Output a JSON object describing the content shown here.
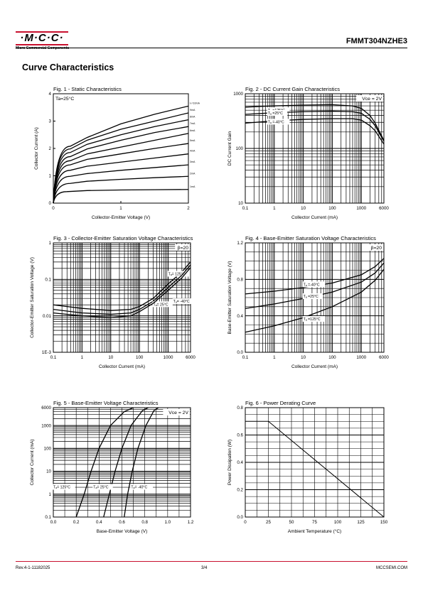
{
  "header": {
    "logo_text": "·M·C·C·",
    "logo_sub": "Micro Commercial Components",
    "part_number": "FMMT304NZHE3"
  },
  "section_title": "Curve Characteristics",
  "footer": {
    "rev": "Rev.4-1-11182025",
    "page": "3/4",
    "site": "MCCSEMI.COM"
  },
  "colors": {
    "accent": "#c8102e",
    "ink": "#000000"
  },
  "chart_data": [
    {
      "id": "fig1",
      "type": "line",
      "title": "Fig. 1 - Static Characteristics",
      "xlabel": "Collector-Emitter Voltage (V)",
      "ylabel": "Collector  Current (A)",
      "annotation": "Ta=25°C",
      "xlim": [
        0,
        2
      ],
      "ylim": [
        0,
        4
      ],
      "xticks": [
        "0",
        "1",
        "2"
      ],
      "yticks": [
        "0",
        "1",
        "2",
        "3",
        "4"
      ],
      "grid": false,
      "series": [
        {
          "name": "Iₙ=10mA",
          "values": [
            [
              0,
              0
            ],
            [
              0.25,
              2.08
            ],
            [
              0.5,
              2.4
            ],
            [
              1,
              2.9
            ],
            [
              1.5,
              3.25
            ],
            [
              2,
              3.55
            ]
          ]
        },
        {
          "name": "9mA",
          "values": [
            [
              0,
              0
            ],
            [
              0.25,
              1.98
            ],
            [
              0.5,
              2.3
            ],
            [
              1,
              2.7
            ],
            [
              1.5,
              3.0
            ],
            [
              2,
              3.3
            ]
          ]
        },
        {
          "name": "8mA",
          "values": [
            [
              0,
              0
            ],
            [
              0.25,
              1.85
            ],
            [
              0.5,
              2.15
            ],
            [
              1,
              2.5
            ],
            [
              1.5,
              2.8
            ],
            [
              2,
              3.05
            ]
          ]
        },
        {
          "name": "7mA",
          "values": [
            [
              0,
              0
            ],
            [
              0.25,
              1.7
            ],
            [
              0.5,
              1.98
            ],
            [
              1,
              2.3
            ],
            [
              1.5,
              2.58
            ],
            [
              2,
              2.8
            ]
          ]
        },
        {
          "name": "6mA",
          "values": [
            [
              0,
              0
            ],
            [
              0.25,
              1.55
            ],
            [
              0.5,
              1.8
            ],
            [
              1,
              2.05
            ],
            [
              1.5,
              2.3
            ],
            [
              2,
              2.55
            ]
          ]
        },
        {
          "name": "5mA",
          "values": [
            [
              0,
              0
            ],
            [
              0.25,
              1.4
            ],
            [
              0.5,
              1.6
            ],
            [
              1,
              1.8
            ],
            [
              1.5,
              2.0
            ],
            [
              2,
              2.18
            ]
          ]
        },
        {
          "name": "4mA",
          "values": [
            [
              0,
              0
            ],
            [
              0.25,
              1.2
            ],
            [
              0.5,
              1.35
            ],
            [
              1,
              1.5
            ],
            [
              1.5,
              1.65
            ],
            [
              2,
              1.8
            ]
          ]
        },
        {
          "name": "3mA",
          "values": [
            [
              0,
              0
            ],
            [
              0.25,
              0.98
            ],
            [
              0.5,
              1.08
            ],
            [
              1,
              1.2
            ],
            [
              1.5,
              1.3
            ],
            [
              2,
              1.4
            ]
          ]
        },
        {
          "name": "2mA",
          "values": [
            [
              0,
              0
            ],
            [
              0.25,
              0.72
            ],
            [
              0.5,
              0.8
            ],
            [
              1,
              0.87
            ],
            [
              1.5,
              0.93
            ],
            [
              2,
              0.98
            ]
          ]
        },
        {
          "name": "1mA",
          "values": [
            [
              0,
              0
            ],
            [
              0.2,
              0.42
            ],
            [
              0.5,
              0.46
            ],
            [
              1,
              0.48
            ],
            [
              1.5,
              0.49
            ],
            [
              2,
              0.5
            ]
          ]
        }
      ]
    },
    {
      "id": "fig2",
      "type": "line",
      "title": "Fig. 2 - DC Current Gain Characteristics",
      "xlabel": "Collector Current (mA)",
      "ylabel": "DC Current Gain",
      "annotation": "Vce = 2V",
      "xscale": "log",
      "yscale": "log",
      "xlim": [
        0.1,
        6000
      ],
      "ylim": [
        10,
        1000
      ],
      "xticks": [
        "0.1",
        "1",
        "10",
        "100",
        "1000",
        "6000"
      ],
      "yticks": [
        "10",
        "100",
        "1000"
      ],
      "grid": true,
      "series": [
        {
          "name": "Tₐ =125°C",
          "values": [
            [
              0.1,
              570
            ],
            [
              1,
              600
            ],
            [
              10,
              620
            ],
            [
              100,
              630
            ],
            [
              500,
              600
            ],
            [
              1000,
              540
            ],
            [
              2000,
              400
            ],
            [
              3000,
              290
            ],
            [
              6000,
              140
            ]
          ]
        },
        {
          "name": "Tₐ =25°C",
          "values": [
            [
              0.1,
              420
            ],
            [
              1,
              450
            ],
            [
              10,
              470
            ],
            [
              100,
              480
            ],
            [
              500,
              470
            ],
            [
              1000,
              440
            ],
            [
              2000,
              340
            ],
            [
              3000,
              260
            ],
            [
              6000,
              135
            ]
          ]
        },
        {
          "name": "Tₐ =-40°C",
          "values": [
            [
              0.1,
              290
            ],
            [
              1,
              320
            ],
            [
              10,
              340
            ],
            [
              100,
              350
            ],
            [
              500,
              350
            ],
            [
              1000,
              330
            ],
            [
              2000,
              260
            ],
            [
              3000,
              210
            ],
            [
              6000,
              120
            ]
          ]
        }
      ]
    },
    {
      "id": "fig3",
      "type": "line",
      "title": "Fig. 3 - Collector-Emitter Saturation Voltage Characteristics",
      "xlabel": "Collector Current (mA)",
      "ylabel": "Collector-Emitter Saturation Voltage (V)",
      "annotation": "β=20",
      "xscale": "log",
      "yscale": "log",
      "xlim": [
        0.1,
        6000
      ],
      "ylim": [
        0.001,
        1
      ],
      "xticks": [
        "0.1",
        "1",
        "10",
        "100",
        "1000",
        "6000"
      ],
      "yticks": [
        "1E-3",
        "0.01",
        "0.1",
        "1"
      ],
      "grid": true,
      "series": [
        {
          "name": "Tₐ= 125°C",
          "values": [
            [
              0.1,
              0.02
            ],
            [
              1,
              0.016
            ],
            [
              10,
              0.014
            ],
            [
              50,
              0.015
            ],
            [
              100,
              0.018
            ],
            [
              300,
              0.03
            ],
            [
              1000,
              0.075
            ],
            [
              3000,
              0.16
            ],
            [
              6000,
              0.3
            ]
          ]
        },
        {
          "name": "Tₐ= 25°C",
          "values": [
            [
              0.1,
              0.015
            ],
            [
              1,
              0.012
            ],
            [
              10,
              0.011
            ],
            [
              50,
              0.012
            ],
            [
              100,
              0.015
            ],
            [
              300,
              0.025
            ],
            [
              1000,
              0.06
            ],
            [
              3000,
              0.13
            ],
            [
              6000,
              0.25
            ]
          ]
        },
        {
          "name": "Tₐ= -40°C",
          "values": [
            [
              0.1,
              0.012
            ],
            [
              1,
              0.01
            ],
            [
              10,
              0.009
            ],
            [
              50,
              0.01
            ],
            [
              100,
              0.013
            ],
            [
              300,
              0.022
            ],
            [
              1000,
              0.05
            ],
            [
              3000,
              0.11
            ],
            [
              6000,
              0.21
            ]
          ]
        }
      ]
    },
    {
      "id": "fig4",
      "type": "line",
      "title": "Fig. 4 - Base-Emitter Saturation Voltage Characteristics",
      "xlabel": "Collector Current (mA)",
      "ylabel": "Base-Emitter Saturation Voltage (V)",
      "annotation": "β=20",
      "xscale": "log",
      "xlim": [
        0.1,
        6000
      ],
      "ylim": [
        0,
        1.2
      ],
      "xticks": [
        "0.1",
        "1",
        "10",
        "100",
        "1000",
        "6000"
      ],
      "yticks": [
        "0.0",
        "0.4",
        "0.8",
        "1.2"
      ],
      "grid": true,
      "series": [
        {
          "name": "Tₐ =-40°C",
          "values": [
            [
              0.1,
              0.64
            ],
            [
              1,
              0.67
            ],
            [
              10,
              0.71
            ],
            [
              100,
              0.76
            ],
            [
              1000,
              0.85
            ],
            [
              3000,
              0.94
            ],
            [
              6000,
              1.03
            ]
          ]
        },
        {
          "name": "Tₐ =25°C",
          "values": [
            [
              0.1,
              0.48
            ],
            [
              1,
              0.53
            ],
            [
              10,
              0.59
            ],
            [
              100,
              0.66
            ],
            [
              1000,
              0.77
            ],
            [
              3000,
              0.87
            ],
            [
              6000,
              0.98
            ]
          ]
        },
        {
          "name": "Tₐ =125°C",
          "values": [
            [
              0.1,
              0.22
            ],
            [
              1,
              0.29
            ],
            [
              10,
              0.38
            ],
            [
              100,
              0.5
            ],
            [
              1000,
              0.66
            ],
            [
              3000,
              0.79
            ],
            [
              6000,
              0.91
            ]
          ]
        }
      ]
    },
    {
      "id": "fig5",
      "type": "line",
      "title": "Fig. 5 - Base-Emitter Voltage Characteristics",
      "xlabel": "Base-Emitter Voltage (V)",
      "ylabel": "Collector Current (mA)",
      "annotation": "Vce = 2V",
      "yscale": "log",
      "xlim": [
        0,
        1.2
      ],
      "ylim": [
        0.1,
        6000
      ],
      "xticks": [
        "0.0",
        "0.2",
        "0.4",
        "0.6",
        "0.8",
        "1.0",
        "1.2"
      ],
      "yticks": [
        "0.1",
        "1",
        "10",
        "100",
        "1000",
        "6000"
      ],
      "grid": true,
      "series": [
        {
          "name": "Tₐ= 125°C",
          "values": [
            [
              0.2,
              0.1
            ],
            [
              0.27,
              1
            ],
            [
              0.33,
              10
            ],
            [
              0.4,
              100
            ],
            [
              0.5,
              1000
            ],
            [
              0.62,
              4000
            ],
            [
              0.7,
              6000
            ]
          ]
        },
        {
          "name": "Tₐ= 25°C",
          "values": [
            [
              0.44,
              0.1
            ],
            [
              0.49,
              1
            ],
            [
              0.54,
              10
            ],
            [
              0.6,
              100
            ],
            [
              0.68,
              1000
            ],
            [
              0.78,
              4500
            ],
            [
              0.83,
              6000
            ]
          ]
        },
        {
          "name": "Tₐ= -40°C",
          "values": [
            [
              0.62,
              0.1
            ],
            [
              0.65,
              1
            ],
            [
              0.69,
              10
            ],
            [
              0.74,
              100
            ],
            [
              0.81,
              1000
            ],
            [
              0.88,
              4500
            ],
            [
              0.92,
              6000
            ]
          ]
        }
      ]
    },
    {
      "id": "fig6",
      "type": "line",
      "title": "Fig. 6 - Power Derating Curve",
      "xlabel": "Ambient Temperature (°C)",
      "ylabel": "Power Dissipation  (W)",
      "xlim": [
        0,
        150
      ],
      "ylim": [
        0,
        0.8
      ],
      "xticks": [
        "0",
        "25",
        "50",
        "75",
        "100",
        "125",
        "150"
      ],
      "yticks": [
        "0.0",
        "0.2",
        "0.4",
        "0.6",
        "0.8"
      ],
      "grid": true,
      "series": [
        {
          "name": "",
          "values": [
            [
              0,
              0.7
            ],
            [
              25,
              0.7
            ],
            [
              150,
              0
            ]
          ]
        }
      ]
    }
  ]
}
